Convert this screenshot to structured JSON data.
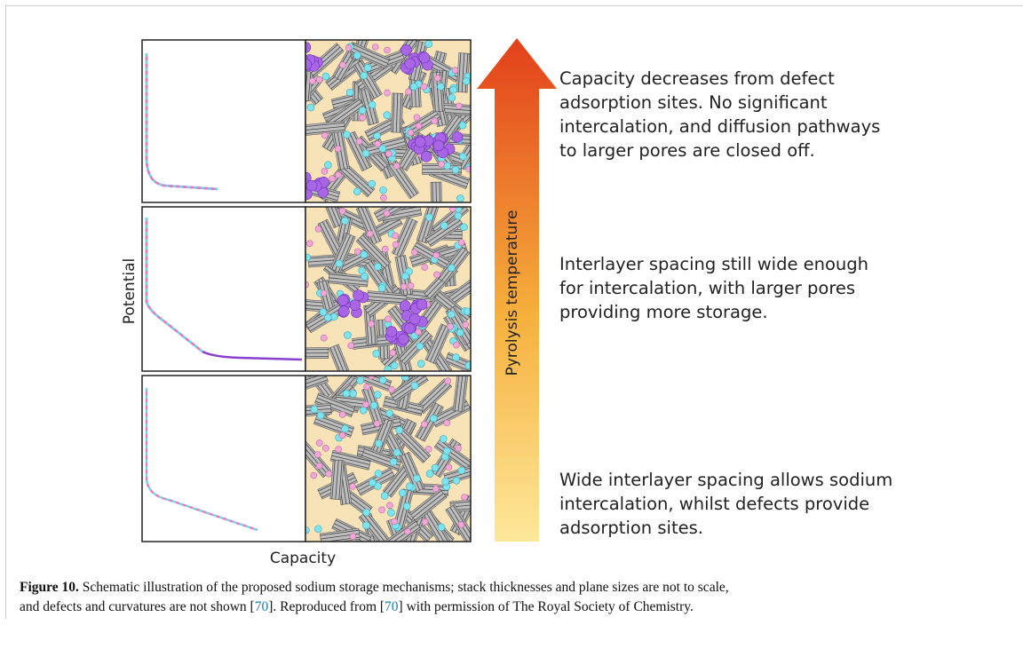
{
  "figure": {
    "y_axis_label": "Potential",
    "x_axis_label": "Capacity",
    "arrow_label": "Pyrolysis temperature",
    "descriptions": [
      {
        "lines": [
          "Capacity decreases from defect",
          "adsorption sites. No significant",
          "intercalation, and diffusion pathways",
          "to larger pores are closed off."
        ]
      },
      {
        "lines": [
          "Interlayer spacing still wide enough",
          "for intercalation, with larger pores",
          "providing more storage."
        ]
      },
      {
        "lines": [
          "Wide interlayer spacing allows sodium",
          "intercalation, whilst defects provide",
          "adsorption sites."
        ]
      }
    ]
  },
  "caption": {
    "label": "Figure 10.",
    "text_1": "Schematic illustration of the proposed sodium storage mechanisms; stack thicknesses and plane sizes are not to scale,",
    "text_2": "and defects and curvatures are not shown [",
    "ref_1": "70",
    "text_3": "]. Reproduced from [",
    "ref_2": "70",
    "text_4": "] with permission of The Royal Society of Chemistry."
  }
}
